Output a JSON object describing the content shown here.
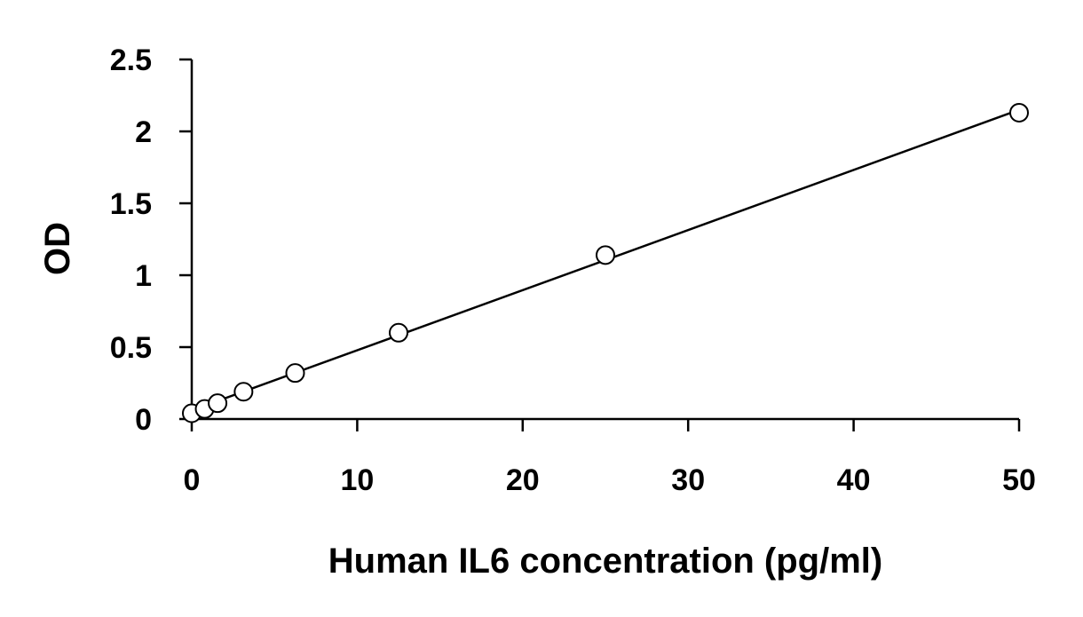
{
  "chart_data": {
    "type": "scatter",
    "title": "",
    "xlabel": "Human IL6 concentration (pg/ml)",
    "ylabel": "OD",
    "xlim": [
      0,
      50
    ],
    "ylim": [
      0,
      2.5
    ],
    "x_ticks": [
      "0",
      "10",
      "20",
      "30",
      "40",
      "50"
    ],
    "y_ticks": [
      "0",
      "0.5",
      "1",
      "1.5",
      "2",
      "2.5"
    ],
    "grid": false,
    "legend": "none",
    "series": [
      {
        "marker": "open-circle",
        "color": "#000000",
        "points": [
          {
            "x": 0,
            "y": 0.04
          },
          {
            "x": 0.78,
            "y": 0.07
          },
          {
            "x": 1.56,
            "y": 0.11
          },
          {
            "x": 3.13,
            "y": 0.19
          },
          {
            "x": 6.25,
            "y": 0.32
          },
          {
            "x": 12.5,
            "y": 0.6
          },
          {
            "x": 25,
            "y": 1.14
          },
          {
            "x": 50,
            "y": 2.13
          }
        ]
      }
    ],
    "trendline": {
      "type": "linear",
      "color": "#000000",
      "from": {
        "x": 0,
        "y": 0.06
      },
      "to": {
        "x": 50,
        "y": 2.15
      }
    }
  }
}
